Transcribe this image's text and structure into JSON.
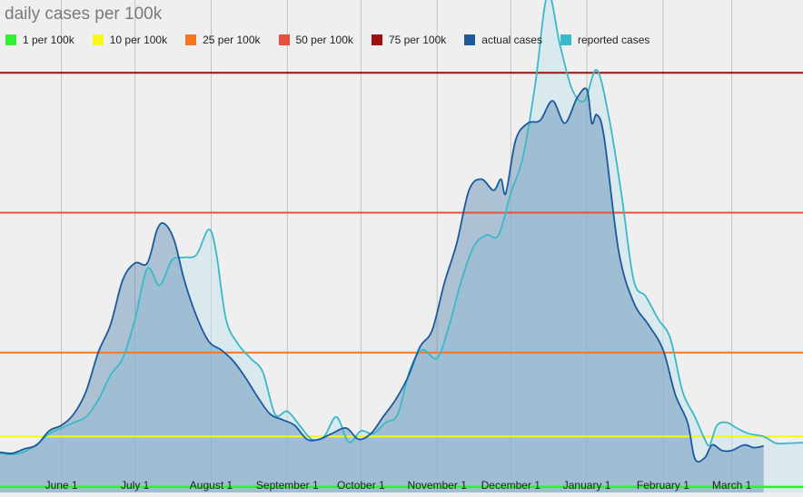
{
  "chart_data": {
    "type": "area",
    "title": "daily cases per 100k",
    "xlabel": "",
    "ylabel": "",
    "ylim": [
      0,
      88
    ],
    "x_range": [
      "2020-05-07",
      "2021-03-30"
    ],
    "grid": true,
    "legend_position": "top-left",
    "x_ticks": [
      {
        "label": "June 1",
        "date": "2020-06-01"
      },
      {
        "label": "July 1",
        "date": "2020-07-01"
      },
      {
        "label": "August 1",
        "date": "2020-08-01"
      },
      {
        "label": "September 1",
        "date": "2020-09-01"
      },
      {
        "label": "October 1",
        "date": "2020-10-01"
      },
      {
        "label": "November 1",
        "date": "2020-11-01"
      },
      {
        "label": "December 1",
        "date": "2020-12-01"
      },
      {
        "label": "January 1",
        "date": "2021-01-01"
      },
      {
        "label": "February 1",
        "date": "2021-02-01"
      },
      {
        "label": "March 1",
        "date": "2021-03-01"
      }
    ],
    "thresholds": [
      {
        "name": "1 per 100k",
        "value": 1,
        "color": "#33ee33"
      },
      {
        "name": "10 per 100k",
        "value": 10,
        "color": "#f7f71c"
      },
      {
        "name": "25 per 100k",
        "value": 25,
        "color": "#f57722"
      },
      {
        "name": "50 per 100k",
        "value": 50,
        "color": "#e8503c"
      },
      {
        "name": "75 per 100k",
        "value": 75,
        "color": "#a01010"
      }
    ],
    "series": [
      {
        "name": "actual cases",
        "color": "#1c5a9c",
        "points": [
          [
            "2020-05-07",
            7.2
          ],
          [
            "2020-05-12",
            7.0
          ],
          [
            "2020-05-17",
            7.8
          ],
          [
            "2020-05-22",
            8.5
          ],
          [
            "2020-05-27",
            11.0
          ],
          [
            "2020-06-01",
            12.0
          ],
          [
            "2020-06-06",
            14.0
          ],
          [
            "2020-06-11",
            18.0
          ],
          [
            "2020-06-16",
            25.0
          ],
          [
            "2020-06-21",
            30.0
          ],
          [
            "2020-06-26",
            38.0
          ],
          [
            "2020-07-01",
            41.0
          ],
          [
            "2020-07-06",
            41.0
          ],
          [
            "2020-07-10",
            47.0
          ],
          [
            "2020-07-13",
            48.0
          ],
          [
            "2020-07-17",
            45.0
          ],
          [
            "2020-07-21",
            38.0
          ],
          [
            "2020-07-26",
            31.5
          ],
          [
            "2020-07-31",
            27.0
          ],
          [
            "2020-08-05",
            25.5
          ],
          [
            "2020-08-10",
            23.5
          ],
          [
            "2020-08-15",
            20.5
          ],
          [
            "2020-08-20",
            17.0
          ],
          [
            "2020-08-25",
            14.0
          ],
          [
            "2020-08-30",
            13.0
          ],
          [
            "2020-09-04",
            12.0
          ],
          [
            "2020-09-09",
            9.5
          ],
          [
            "2020-09-14",
            9.5
          ],
          [
            "2020-09-19",
            10.5
          ],
          [
            "2020-09-25",
            11.5
          ],
          [
            "2020-09-30",
            9.5
          ],
          [
            "2020-10-05",
            10.5
          ],
          [
            "2020-10-10",
            13.5
          ],
          [
            "2020-10-15",
            16.5
          ],
          [
            "2020-10-20",
            20.5
          ],
          [
            "2020-10-25",
            26.0
          ],
          [
            "2020-10-30",
            29.0
          ],
          [
            "2020-11-04",
            37.5
          ],
          [
            "2020-11-09",
            44.5
          ],
          [
            "2020-11-14",
            54.0
          ],
          [
            "2020-11-19",
            56.0
          ],
          [
            "2020-11-24",
            54.0
          ],
          [
            "2020-11-27",
            56.0
          ],
          [
            "2020-11-29",
            53.5
          ],
          [
            "2020-12-03",
            63.0
          ],
          [
            "2020-12-08",
            66.0
          ],
          [
            "2020-12-13",
            66.5
          ],
          [
            "2020-12-18",
            70.0
          ],
          [
            "2020-12-23",
            66.0
          ],
          [
            "2020-12-28",
            70.5
          ],
          [
            "2021-01-01",
            72.0
          ],
          [
            "2021-01-03",
            66.0
          ],
          [
            "2021-01-05",
            67.5
          ],
          [
            "2021-01-08",
            63.5
          ],
          [
            "2021-01-14",
            43.0
          ],
          [
            "2021-01-20",
            34.0
          ],
          [
            "2021-01-26",
            30.0
          ],
          [
            "2021-02-01",
            25.5
          ],
          [
            "2021-02-06",
            17.5
          ],
          [
            "2021-02-11",
            12.5
          ],
          [
            "2021-02-14",
            6.0
          ],
          [
            "2021-02-18",
            6.2
          ],
          [
            "2021-02-21",
            8.5
          ],
          [
            "2021-02-25",
            7.5
          ],
          [
            "2021-03-01",
            7.5
          ],
          [
            "2021-03-06",
            8.5
          ],
          [
            "2021-03-10",
            8.0
          ],
          [
            "2021-03-14",
            8.3
          ]
        ]
      },
      {
        "name": "reported cases",
        "color": "#3ab9c8",
        "points": [
          [
            "2020-05-07",
            7.0
          ],
          [
            "2020-05-12",
            6.8
          ],
          [
            "2020-05-17",
            7.3
          ],
          [
            "2020-05-22",
            8.6
          ],
          [
            "2020-05-27",
            10.5
          ],
          [
            "2020-06-01",
            11.5
          ],
          [
            "2020-06-06",
            12.5
          ],
          [
            "2020-06-11",
            13.5
          ],
          [
            "2020-06-16",
            16.5
          ],
          [
            "2020-06-21",
            21.0
          ],
          [
            "2020-06-26",
            24.0
          ],
          [
            "2020-07-01",
            31.0
          ],
          [
            "2020-07-06",
            40.0
          ],
          [
            "2020-07-11",
            37.0
          ],
          [
            "2020-07-16",
            41.5
          ],
          [
            "2020-07-21",
            42.0
          ],
          [
            "2020-07-26",
            42.5
          ],
          [
            "2020-07-31",
            47.0
          ],
          [
            "2020-08-03",
            43.0
          ],
          [
            "2020-08-07",
            31.0
          ],
          [
            "2020-08-12",
            26.5
          ],
          [
            "2020-08-17",
            24.0
          ],
          [
            "2020-08-22",
            21.5
          ],
          [
            "2020-08-27",
            14.0
          ],
          [
            "2020-09-01",
            14.5
          ],
          [
            "2020-09-06",
            12.0
          ],
          [
            "2020-09-11",
            9.5
          ],
          [
            "2020-09-16",
            10.0
          ],
          [
            "2020-09-21",
            13.5
          ],
          [
            "2020-09-26",
            9.0
          ],
          [
            "2020-10-01",
            11.0
          ],
          [
            "2020-10-06",
            10.5
          ],
          [
            "2020-10-11",
            12.5
          ],
          [
            "2020-10-16",
            14.0
          ],
          [
            "2020-10-21",
            22.0
          ],
          [
            "2020-10-26",
            25.5
          ],
          [
            "2020-11-01",
            24.0
          ],
          [
            "2020-11-06",
            30.0
          ],
          [
            "2020-11-11",
            38.0
          ],
          [
            "2020-11-16",
            44.0
          ],
          [
            "2020-11-21",
            46.0
          ],
          [
            "2020-11-26",
            46.0
          ],
          [
            "2020-12-01",
            53.5
          ],
          [
            "2020-12-06",
            60.0
          ],
          [
            "2020-12-11",
            73.0
          ],
          [
            "2020-12-16",
            89.0
          ],
          [
            "2020-12-21",
            80.0
          ],
          [
            "2020-12-26",
            72.0
          ],
          [
            "2020-12-31",
            70.0
          ],
          [
            "2021-01-05",
            75.5
          ],
          [
            "2021-01-10",
            67.0
          ],
          [
            "2021-01-15",
            53.5
          ],
          [
            "2021-01-20",
            38.0
          ],
          [
            "2021-01-25",
            35.0
          ],
          [
            "2021-01-30",
            31.0
          ],
          [
            "2021-02-04",
            27.5
          ],
          [
            "2021-02-09",
            18.0
          ],
          [
            "2021-02-14",
            13.5
          ],
          [
            "2021-02-18",
            9.5
          ],
          [
            "2021-02-20",
            8.5
          ],
          [
            "2021-02-23",
            12.0
          ],
          [
            "2021-02-27",
            12.5
          ],
          [
            "2021-03-03",
            11.5
          ],
          [
            "2021-03-08",
            10.5
          ],
          [
            "2021-03-14",
            10.0
          ],
          [
            "2021-03-19",
            8.8
          ],
          [
            "2021-03-24",
            8.8
          ],
          [
            "2021-03-30",
            8.9
          ]
        ]
      }
    ]
  }
}
